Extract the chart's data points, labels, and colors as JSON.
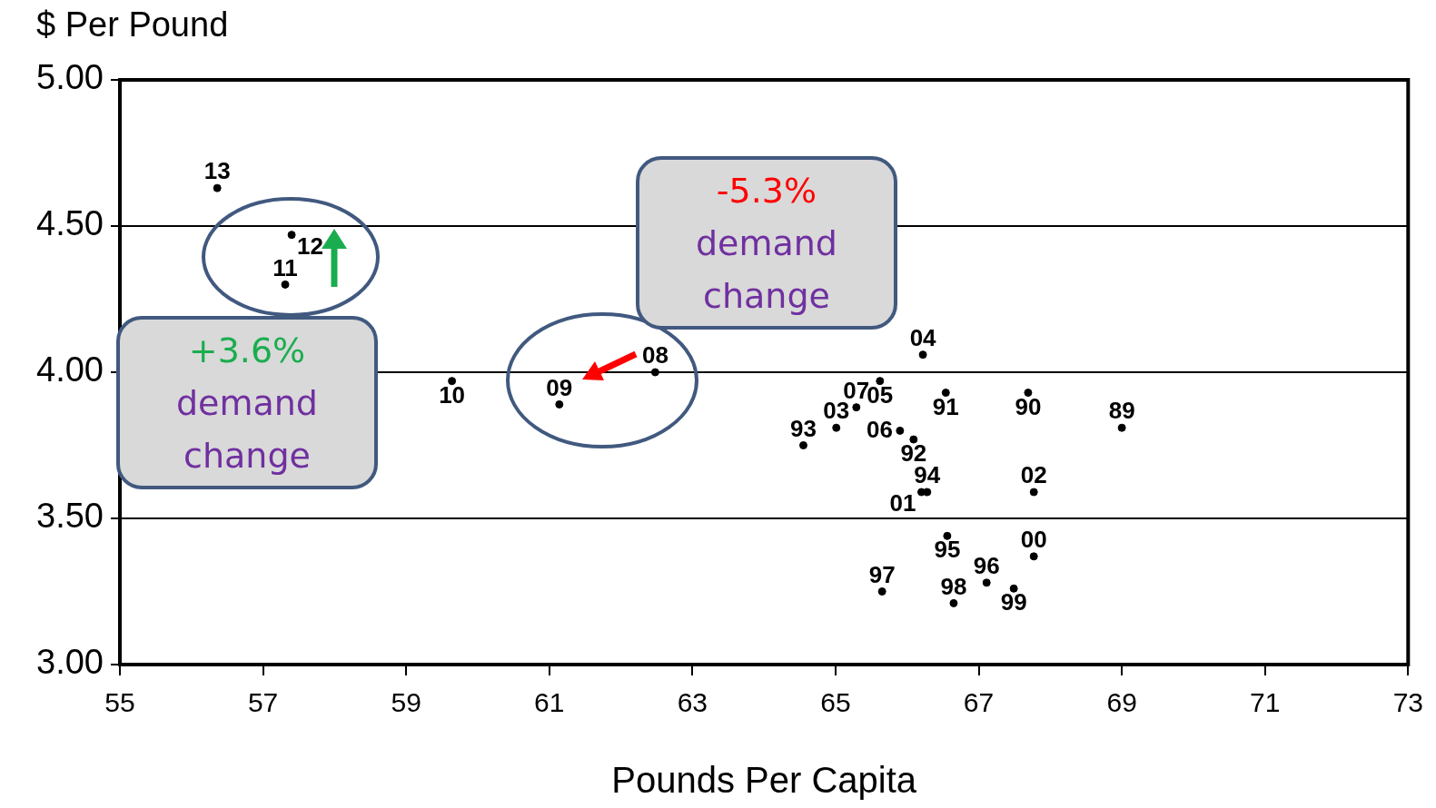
{
  "chart_data": {
    "type": "scatter",
    "xlabel": "Pounds Per Capita",
    "ylabel": "$ Per Pound",
    "xlim": [
      55,
      73
    ],
    "xticks": [
      55,
      57,
      59,
      61,
      63,
      65,
      67,
      69,
      71,
      73
    ],
    "ylim": [
      3,
      5
    ],
    "yticks": [
      {
        "value": 3,
        "label": "3.00"
      },
      {
        "value": 3.5,
        "label": "3.50"
      },
      {
        "value": 4,
        "label": "4.00"
      },
      {
        "value": 4.5,
        "label": "4.50"
      },
      {
        "value": 5,
        "label": "5.00"
      }
    ],
    "grid": "y",
    "legend": false,
    "marker": "circle",
    "series": [
      {
        "name": "89",
        "color": "#000000",
        "x": [
          69.0
        ],
        "values": [
          3.81
        ]
      },
      {
        "name": "90",
        "color": "#000000",
        "x": [
          67.69
        ],
        "values": [
          3.93
        ]
      },
      {
        "name": "91",
        "color": "#000000",
        "x": [
          66.54
        ],
        "values": [
          3.93
        ]
      },
      {
        "name": "92",
        "color": "#000000",
        "x": [
          66.09
        ],
        "values": [
          3.77
        ]
      },
      {
        "name": "93",
        "color": "#000000",
        "x": [
          64.55
        ],
        "values": [
          3.75
        ]
      },
      {
        "name": "94",
        "color": "#000000",
        "x": [
          66.28
        ],
        "values": [
          3.59
        ]
      },
      {
        "name": "95",
        "color": "#000000",
        "x": [
          66.56
        ],
        "values": [
          3.44
        ]
      },
      {
        "name": "96",
        "color": "#000000",
        "x": [
          67.11
        ],
        "values": [
          3.28
        ]
      },
      {
        "name": "97",
        "color": "#000000",
        "x": [
          65.65
        ],
        "values": [
          3.25
        ]
      },
      {
        "name": "98",
        "color": "#000000",
        "x": [
          66.65
        ],
        "values": [
          3.21
        ]
      },
      {
        "name": "99",
        "color": "#000000",
        "x": [
          67.49
        ],
        "values": [
          3.26
        ]
      },
      {
        "name": "00",
        "color": "#000000",
        "x": [
          67.77
        ],
        "values": [
          3.37
        ]
      },
      {
        "name": "01",
        "color": "#000000",
        "x": [
          66.2
        ],
        "values": [
          3.59
        ]
      },
      {
        "name": "02",
        "color": "#000000",
        "x": [
          67.77
        ],
        "values": [
          3.59
        ]
      },
      {
        "name": "03",
        "color": "#000000",
        "x": [
          65.01
        ],
        "values": [
          3.81
        ]
      },
      {
        "name": "04",
        "color": "#000000",
        "x": [
          66.22
        ],
        "values": [
          4.06
        ]
      },
      {
        "name": "05",
        "color": "#000000",
        "x": [
          65.62
        ],
        "values": [
          3.97
        ]
      },
      {
        "name": "06",
        "color": "#000000",
        "x": [
          65.9
        ],
        "values": [
          3.8
        ]
      },
      {
        "name": "07",
        "color": "#000000",
        "x": [
          65.29
        ],
        "values": [
          3.88
        ]
      },
      {
        "name": "08",
        "color": "#000000",
        "x": [
          62.48
        ],
        "values": [
          4.0
        ]
      },
      {
        "name": "09",
        "color": "#000000",
        "x": [
          61.14
        ],
        "values": [
          3.89
        ]
      },
      {
        "name": "10",
        "color": "#000000",
        "x": [
          59.64
        ],
        "values": [
          3.97
        ]
      },
      {
        "name": "11",
        "color": "#000000",
        "x": [
          57.31
        ],
        "values": [
          4.3
        ]
      },
      {
        "name": "12",
        "color": "#000000",
        "x": [
          57.4
        ],
        "values": [
          4.47
        ]
      },
      {
        "name": "13",
        "color": "#000000",
        "x": [
          56.36
        ],
        "values": [
          4.63
        ]
      }
    ],
    "annotations": [
      "+3.6%",
      "demand change",
      "-5.3%",
      "demand change"
    ]
  }
}
